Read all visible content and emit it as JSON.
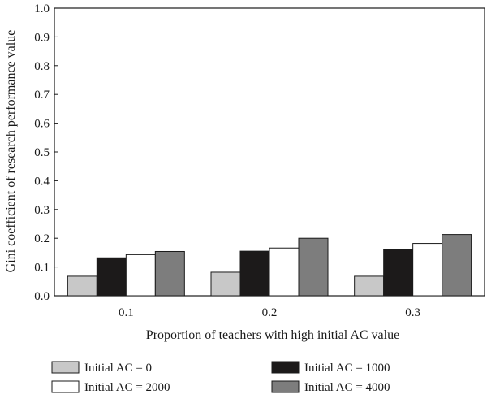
{
  "chart_data": {
    "type": "bar",
    "title": "",
    "xlabel": "Proportion of teachers with high initial AC value",
    "ylabel": "Gini coefficient of research performance value",
    "categories": [
      "0.1",
      "0.2",
      "0.3"
    ],
    "ylim": [
      0,
      1.0
    ],
    "yticks": [
      "0.0",
      "0.1",
      "0.2",
      "0.3",
      "0.4",
      "0.5",
      "0.6",
      "0.7",
      "0.8",
      "0.9",
      "1.0"
    ],
    "grid": false,
    "legend_position": "bottom",
    "series": [
      {
        "name": "Initial AC = 0",
        "color": "#c8c8c8",
        "values": [
          0.068,
          0.082,
          0.068
        ]
      },
      {
        "name": "Initial AC = 1000",
        "color": "#1c1a1a",
        "values": [
          0.132,
          0.155,
          0.16
        ]
      },
      {
        "name": "Initial AC = 2000",
        "color": "#ffffff",
        "values": [
          0.143,
          0.166,
          0.182
        ]
      },
      {
        "name": "Initial AC = 4000",
        "color": "#7d7d7d",
        "values": [
          0.154,
          0.2,
          0.213
        ]
      }
    ]
  }
}
